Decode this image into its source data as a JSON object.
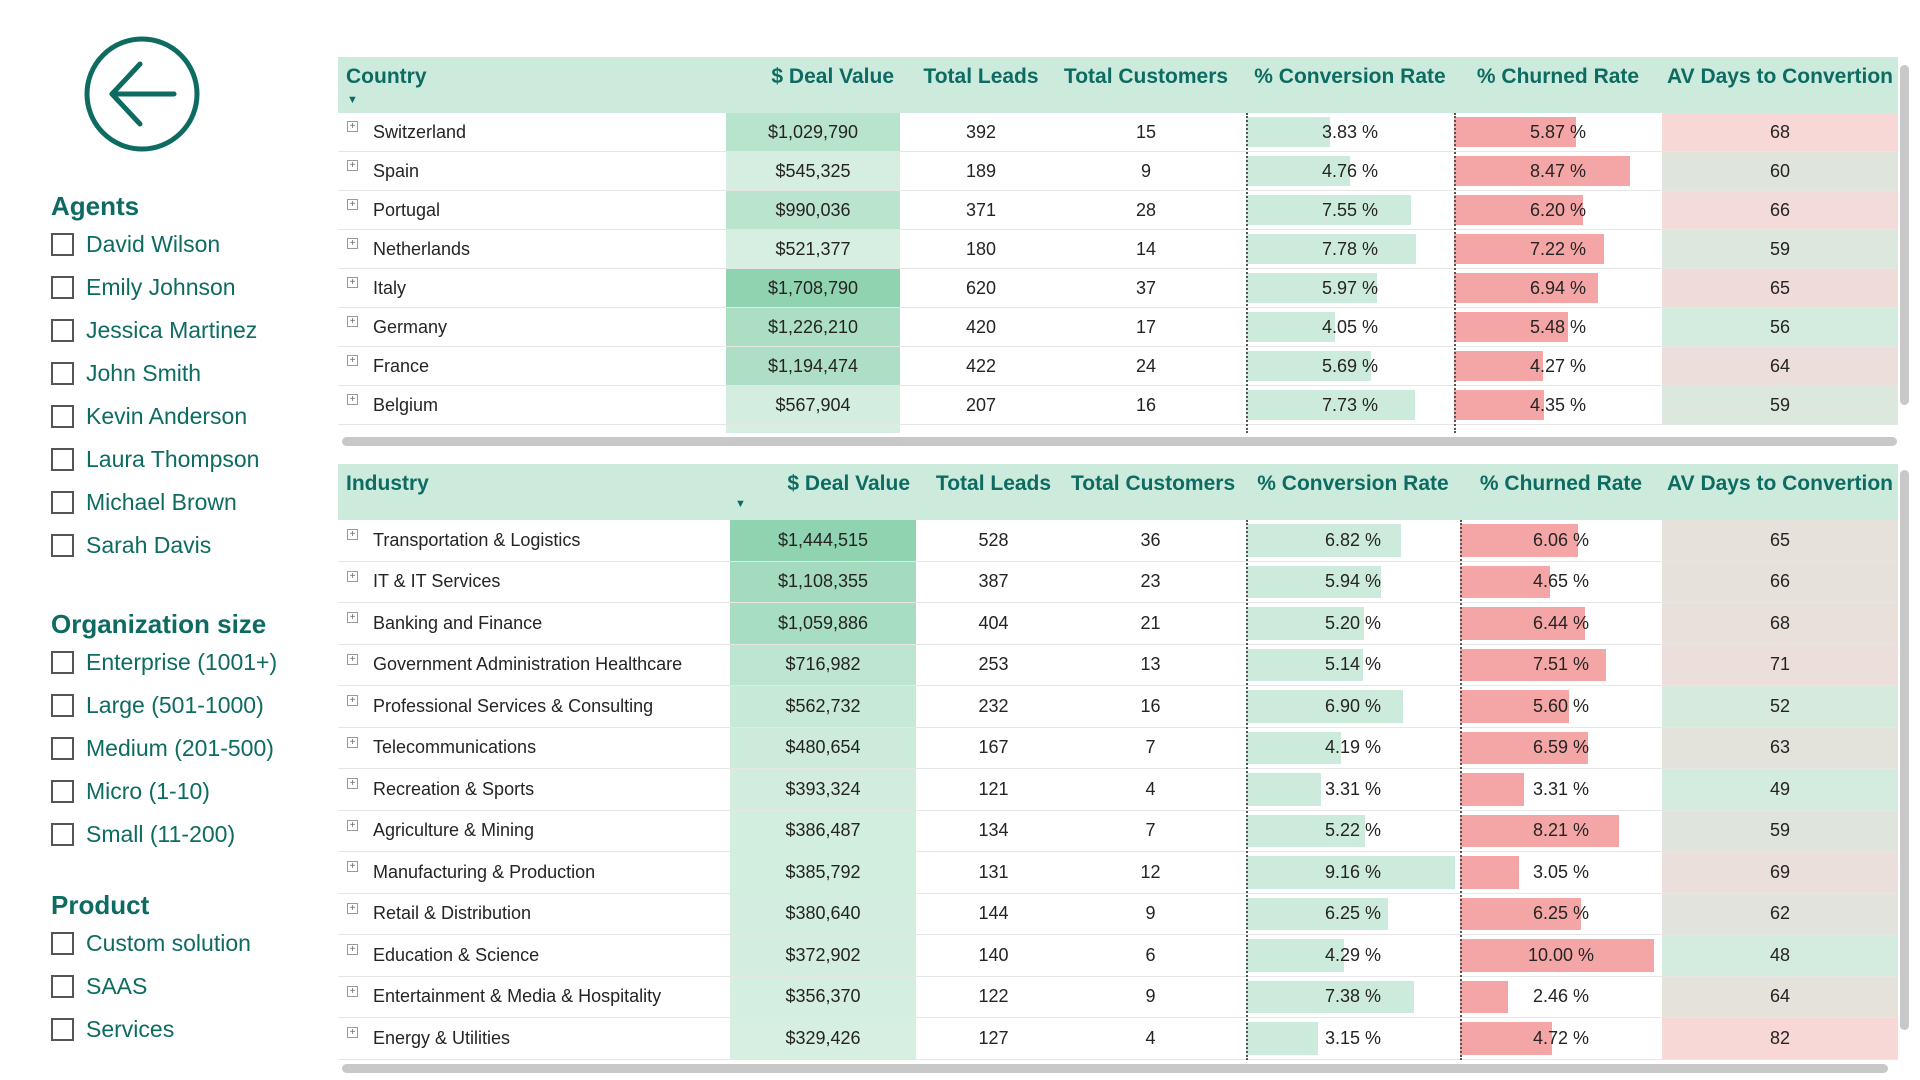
{
  "colors": {
    "header_bg": "#cdebdc",
    "accent_text": "#0d6b62",
    "conversion_bar": "#cdebdc",
    "churn_bar": "#f4a6a6",
    "days_high": "#f8d7d7",
    "days_low": "#d3ecdf"
  },
  "nav": {
    "back_icon": "arrow-left-circle-icon"
  },
  "slicers": [
    {
      "title": "Agents",
      "items": [
        "David Wilson",
        "Emily Johnson",
        "Jessica Martinez",
        "John Smith",
        "Kevin Anderson",
        "Laura Thompson",
        "Michael Brown",
        "Sarah Davis"
      ]
    },
    {
      "title": "Organization size",
      "items": [
        "Enterprise (1001+)",
        "Large (501-1000)",
        "Medium (201-500)",
        "Micro (1-10)",
        "Small (11-200)"
      ]
    },
    {
      "title": "Product",
      "items": [
        "Custom solution",
        "SAAS",
        "Services"
      ]
    }
  ],
  "country_table": {
    "headers": {
      "name": "Country",
      "deal": "$ Deal Value",
      "leads": "Total Leads",
      "customers": "Total Customers",
      "conversion": "% Conversion Rate",
      "churn": "% Churned Rate",
      "days": "AV Days to Convertion"
    },
    "rows": [
      {
        "name": "Switzerland",
        "deal": "$1,029,790",
        "leads": "392",
        "customers": "15",
        "conversion": "3.83 %",
        "churn": "5.87 %",
        "days": "68"
      },
      {
        "name": "Spain",
        "deal": "$545,325",
        "leads": "189",
        "customers": "9",
        "conversion": "4.76 %",
        "churn": "8.47 %",
        "days": "60"
      },
      {
        "name": "Portugal",
        "deal": "$990,036",
        "leads": "371",
        "customers": "28",
        "conversion": "7.55 %",
        "churn": "6.20 %",
        "days": "66"
      },
      {
        "name": "Netherlands",
        "deal": "$521,377",
        "leads": "180",
        "customers": "14",
        "conversion": "7.78 %",
        "churn": "7.22 %",
        "days": "59"
      },
      {
        "name": "Italy",
        "deal": "$1,708,790",
        "leads": "620",
        "customers": "37",
        "conversion": "5.97 %",
        "churn": "6.94 %",
        "days": "65"
      },
      {
        "name": "Germany",
        "deal": "$1,226,210",
        "leads": "420",
        "customers": "17",
        "conversion": "4.05 %",
        "churn": "5.48 %",
        "days": "56"
      },
      {
        "name": "France",
        "deal": "$1,194,474",
        "leads": "422",
        "customers": "24",
        "conversion": "5.69 %",
        "churn": "4.27 %",
        "days": "64"
      },
      {
        "name": "Belgium",
        "deal": "$567,904",
        "leads": "207",
        "customers": "16",
        "conversion": "7.73 %",
        "churn": "4.35 %",
        "days": "59"
      }
    ]
  },
  "industry_table": {
    "headers": {
      "name": "Industry",
      "deal": "$ Deal Value",
      "leads": "Total Leads",
      "customers": "Total Customers",
      "conversion": "% Conversion Rate",
      "churn": "% Churned Rate",
      "days": "AV Days to Convertion"
    },
    "rows": [
      {
        "name": "Transportation & Logistics",
        "deal": "$1,444,515",
        "leads": "528",
        "customers": "36",
        "conversion": "6.82 %",
        "churn": "6.06 %",
        "days": "65"
      },
      {
        "name": "IT & IT Services",
        "deal": "$1,108,355",
        "leads": "387",
        "customers": "23",
        "conversion": "5.94 %",
        "churn": "4.65 %",
        "days": "66"
      },
      {
        "name": "Banking and Finance",
        "deal": "$1,059,886",
        "leads": "404",
        "customers": "21",
        "conversion": "5.20 %",
        "churn": "6.44 %",
        "days": "68"
      },
      {
        "name": "Government Administration Healthcare",
        "deal": "$716,982",
        "leads": "253",
        "customers": "13",
        "conversion": "5.14 %",
        "churn": "7.51 %",
        "days": "71"
      },
      {
        "name": "Professional Services & Consulting",
        "deal": "$562,732",
        "leads": "232",
        "customers": "16",
        "conversion": "6.90 %",
        "churn": "5.60 %",
        "days": "52"
      },
      {
        "name": "Telecommunications",
        "deal": "$480,654",
        "leads": "167",
        "customers": "7",
        "conversion": "4.19 %",
        "churn": "6.59 %",
        "days": "63"
      },
      {
        "name": "Recreation & Sports",
        "deal": "$393,324",
        "leads": "121",
        "customers": "4",
        "conversion": "3.31 %",
        "churn": "3.31 %",
        "days": "49"
      },
      {
        "name": "Agriculture & Mining",
        "deal": "$386,487",
        "leads": "134",
        "customers": "7",
        "conversion": "5.22 %",
        "churn": "8.21 %",
        "days": "59"
      },
      {
        "name": "Manufacturing & Production",
        "deal": "$385,792",
        "leads": "131",
        "customers": "12",
        "conversion": "9.16 %",
        "churn": "3.05 %",
        "days": "69"
      },
      {
        "name": "Retail & Distribution",
        "deal": "$380,640",
        "leads": "144",
        "customers": "9",
        "conversion": "6.25 %",
        "churn": "6.25 %",
        "days": "62"
      },
      {
        "name": "Education & Science",
        "deal": "$372,902",
        "leads": "140",
        "customers": "6",
        "conversion": "4.29 %",
        "churn": "10.00 %",
        "days": "48"
      },
      {
        "name": "Entertainment & Media & Hospitality",
        "deal": "$356,370",
        "leads": "122",
        "customers": "9",
        "conversion": "7.38 %",
        "churn": "2.46 %",
        "days": "64"
      },
      {
        "name": "Energy & Utilities",
        "deal": "$329,426",
        "leads": "127",
        "customers": "4",
        "conversion": "3.15 %",
        "churn": "4.72 %",
        "days": "82"
      }
    ]
  }
}
